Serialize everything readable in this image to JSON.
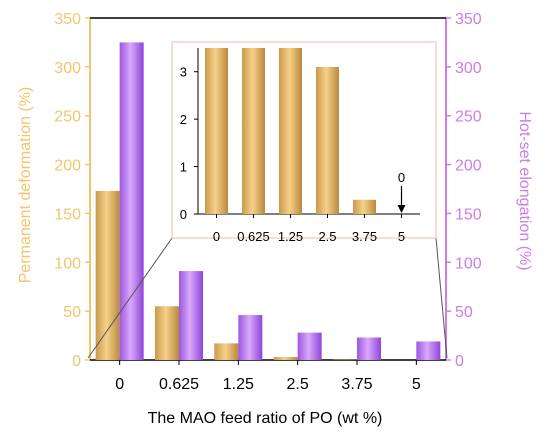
{
  "chart_data": [
    {
      "type": "bar",
      "categories": [
        "0",
        "0.625",
        "1.25",
        "2.5",
        "3.75",
        "5"
      ],
      "xlabel": "The MAO feed ratio of  PO (wt %)",
      "ylabel_left": "Permanent deformation (%)",
      "ylabel_right": "Hot-set elongation (%)",
      "ylim": [
        0,
        350
      ],
      "yticks": [
        "0",
        "50",
        "100",
        "150",
        "200",
        "250",
        "300",
        "350"
      ],
      "series": [
        {
          "axis": "left",
          "values": [
            173,
            55,
            17,
            3.1,
            0.3,
            0
          ]
        },
        {
          "axis": "right",
          "values": [
            325,
            91,
            46,
            28,
            23,
            19
          ]
        }
      ]
    },
    {
      "type": "bar",
      "categories": [
        "0",
        "0.625",
        "1.25",
        "2.5",
        "3.75",
        "5"
      ],
      "ylim": [
        0,
        3.5
      ],
      "yticks": [
        "0",
        "1",
        "2",
        "3"
      ],
      "values": [
        3.5,
        3.5,
        3.5,
        3.1,
        0.3,
        0
      ],
      "annotation": "0"
    }
  ],
  "colors": {
    "left_axis": "#F2C46E",
    "right_axis": "#CC7DE8",
    "bar_gold": "#E3B564",
    "bar_purple": "#B06BEF",
    "inset_border": "#F2B8B0",
    "zoom_line": "#555555"
  }
}
